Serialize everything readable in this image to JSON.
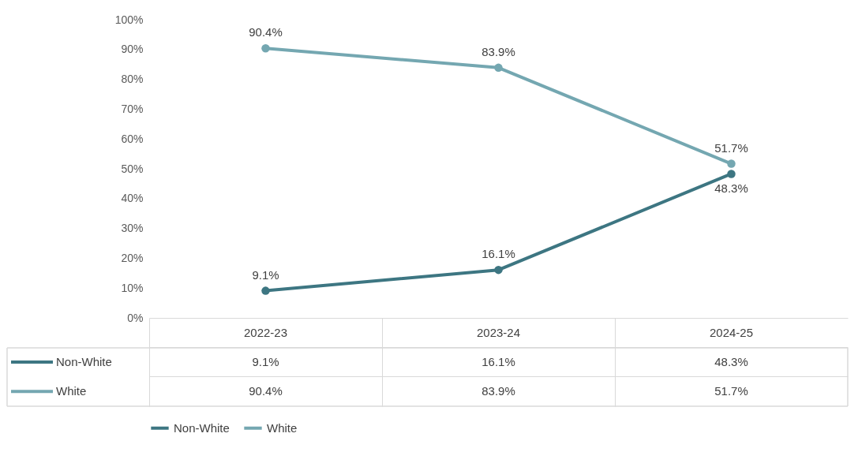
{
  "chart_data": {
    "type": "line",
    "categories": [
      "2022-23",
      "2023-24",
      "2024-25"
    ],
    "series": [
      {
        "name": "Non-White",
        "color": "#3d7682",
        "values": [
          9.1,
          16.1,
          48.3
        ],
        "value_labels": [
          "9.1%",
          "16.1%",
          "48.3%"
        ]
      },
      {
        "name": "White",
        "color": "#74a7b1",
        "values": [
          90.4,
          83.9,
          51.7
        ],
        "value_labels": [
          "90.4%",
          "83.9%",
          "51.7%"
        ]
      }
    ],
    "ylim": [
      0,
      100
    ],
    "yticks": [
      {
        "value": 0,
        "label": "0%"
      },
      {
        "value": 10,
        "label": "10%"
      },
      {
        "value": 20,
        "label": "20%"
      },
      {
        "value": 30,
        "label": "30%"
      },
      {
        "value": 40,
        "label": "40%"
      },
      {
        "value": 50,
        "label": "50%"
      },
      {
        "value": 60,
        "label": "60%"
      },
      {
        "value": 70,
        "label": "70%"
      },
      {
        "value": 80,
        "label": "80%"
      },
      {
        "value": 90,
        "label": "90%"
      },
      {
        "value": 100,
        "label": "100%"
      }
    ],
    "grid": false,
    "legend": "bottom",
    "marker": "circle",
    "line_style": "solid"
  }
}
